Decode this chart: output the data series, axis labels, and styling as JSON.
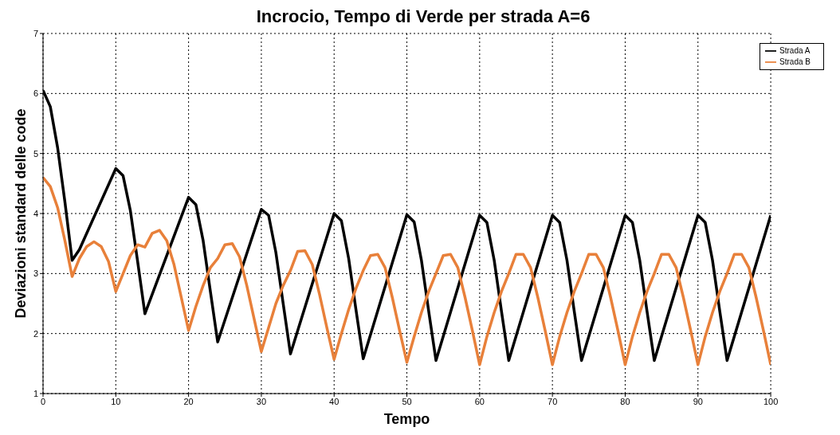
{
  "chart_data": {
    "type": "line",
    "title": "Incrocio, Tempo di Verde per strada A=6",
    "xlabel": "Tempo",
    "ylabel": "Deviazioni standard delle code",
    "xlim": [
      0,
      100
    ],
    "ylim": [
      1,
      7
    ],
    "xticks": [
      0,
      10,
      20,
      30,
      40,
      50,
      60,
      70,
      80,
      90,
      100
    ],
    "yticks": [
      1,
      2,
      3,
      4,
      5,
      6,
      7
    ],
    "grid": true,
    "legend": "top right",
    "marker": "none",
    "line_style": "solid",
    "series": [
      {
        "name": "Strada A",
        "color": "#000000",
        "x": [
          0,
          1,
          2,
          3,
          4,
          5,
          10,
          11,
          12,
          13,
          14,
          20,
          21,
          22,
          23,
          24,
          30,
          31,
          32,
          33,
          34,
          40,
          41,
          42,
          43,
          44,
          50,
          51,
          52,
          53,
          54,
          60,
          61,
          62,
          63,
          64,
          70,
          71,
          72,
          73,
          74,
          80,
          81,
          82,
          83,
          84,
          90,
          91,
          92,
          93,
          94,
          100
        ],
        "values": [
          6.05,
          5.78,
          5.1,
          4.2,
          3.22,
          3.4,
          4.75,
          4.63,
          4.05,
          3.2,
          2.33,
          4.27,
          4.15,
          3.55,
          2.7,
          1.86,
          4.07,
          3.97,
          3.35,
          2.5,
          1.66,
          4.0,
          3.88,
          3.25,
          2.4,
          1.58,
          3.98,
          3.86,
          3.22,
          2.37,
          1.55,
          3.97,
          3.85,
          3.22,
          2.37,
          1.55,
          3.97,
          3.85,
          3.22,
          2.37,
          1.55,
          3.97,
          3.85,
          3.22,
          2.37,
          1.55,
          3.97,
          3.85,
          3.22,
          2.37,
          1.55,
          3.97
        ]
      },
      {
        "name": "Strada B",
        "color": "#e8803a",
        "x": [
          0,
          1,
          2,
          3,
          4,
          5,
          6,
          7,
          8,
          9,
          10,
          11,
          12,
          13,
          14,
          15,
          16,
          17,
          18,
          19,
          20,
          21,
          22,
          23,
          24,
          25,
          26,
          27,
          28,
          29,
          30,
          31,
          32,
          33,
          34,
          35,
          36,
          37,
          38,
          39,
          40,
          41,
          42,
          43,
          44,
          45,
          46,
          47,
          48,
          49,
          50,
          51,
          52,
          53,
          54,
          55,
          56,
          57,
          58,
          59,
          60,
          61,
          62,
          63,
          64,
          65,
          66,
          67,
          68,
          69,
          70,
          71,
          72,
          73,
          74,
          75,
          76,
          77,
          78,
          79,
          80,
          81,
          82,
          83,
          84,
          85,
          86,
          87,
          88,
          89,
          90,
          91,
          92,
          93,
          94,
          95,
          96,
          97,
          98,
          99,
          100
        ],
        "values": [
          4.6,
          4.45,
          4.1,
          3.55,
          2.95,
          3.25,
          3.45,
          3.53,
          3.45,
          3.2,
          2.7,
          3.0,
          3.3,
          3.48,
          3.44,
          3.67,
          3.72,
          3.55,
          3.15,
          2.6,
          2.05,
          2.45,
          2.8,
          3.1,
          3.25,
          3.48,
          3.5,
          3.28,
          2.8,
          2.25,
          1.7,
          2.1,
          2.5,
          2.8,
          3.05,
          3.37,
          3.38,
          3.15,
          2.65,
          2.1,
          1.57,
          2.0,
          2.4,
          2.75,
          3.05,
          3.3,
          3.32,
          3.1,
          2.6,
          2.05,
          1.52,
          1.95,
          2.35,
          2.7,
          3.0,
          3.3,
          3.32,
          3.1,
          2.6,
          2.05,
          1.48,
          1.95,
          2.35,
          2.7,
          3.0,
          3.32,
          3.32,
          3.1,
          2.6,
          2.05,
          1.48,
          1.95,
          2.35,
          2.7,
          3.0,
          3.32,
          3.32,
          3.1,
          2.6,
          2.05,
          1.48,
          1.95,
          2.35,
          2.7,
          3.0,
          3.32,
          3.32,
          3.1,
          2.6,
          2.05,
          1.48,
          1.95,
          2.35,
          2.7,
          3.0,
          3.32,
          3.32,
          3.1,
          2.6,
          2.05,
          1.48
        ]
      }
    ]
  }
}
